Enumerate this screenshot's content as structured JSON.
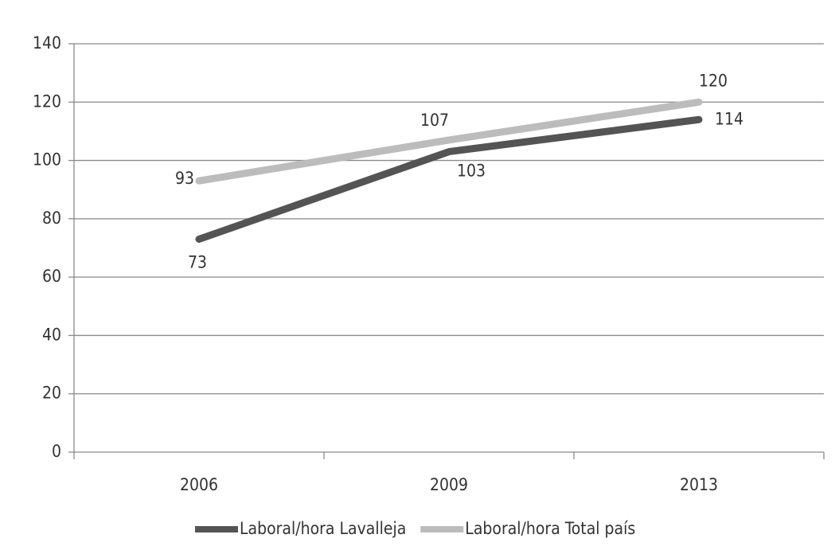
{
  "chart_data": {
    "type": "line",
    "categories": [
      "2006",
      "2009",
      "2013"
    ],
    "series": [
      {
        "name": "Laboral/hora Lavalleja",
        "color": "#545454",
        "values": [
          73,
          103,
          114
        ]
      },
      {
        "name": "Laboral/hora Total país",
        "color": "#bcbcbc",
        "values": [
          93,
          107,
          120
        ]
      }
    ],
    "ylim": [
      0,
      140
    ],
    "yticks": [
      0,
      20,
      40,
      60,
      80,
      100,
      120,
      140
    ],
    "grid": true,
    "legend": "bottom"
  }
}
